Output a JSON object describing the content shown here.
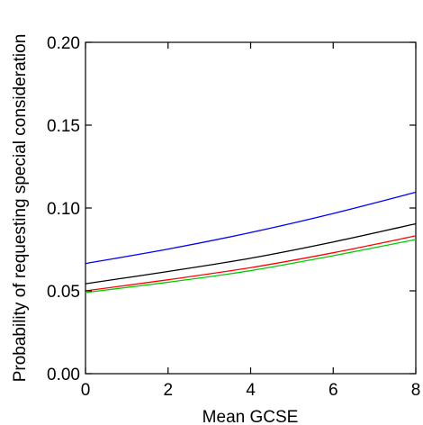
{
  "chart_data": {
    "type": "line",
    "title": "",
    "xlabel": "Mean GCSE",
    "ylabel": "Probability of requesting special consideration",
    "xlim": [
      0,
      8
    ],
    "ylim": [
      0,
      0.2
    ],
    "xticks": [
      0,
      2,
      4,
      6,
      8
    ],
    "xtick_labels": [
      "0",
      "2",
      "4",
      "6",
      "8"
    ],
    "yticks": [
      0,
      0.05,
      0.1,
      0.15,
      0.2
    ],
    "ytick_labels": [
      "0.00",
      "0.05",
      "0.10",
      "0.15",
      "0.20"
    ],
    "grid": false,
    "legend": "none",
    "series": [
      {
        "color": "#0000ff",
        "x": [
          0,
          2,
          4,
          6,
          8
        ],
        "y": [
          0.0665,
          0.0752,
          0.0852,
          0.0967,
          0.1095
        ]
      },
      {
        "color": "#000000",
        "x": [
          0,
          2,
          4,
          6,
          8
        ],
        "y": [
          0.0543,
          0.0617,
          0.0697,
          0.0795,
          0.0905
        ]
      },
      {
        "color": "#ff0000",
        "x": [
          0,
          2,
          4,
          6,
          8
        ],
        "y": [
          0.05,
          0.0567,
          0.064,
          0.073,
          0.0832
        ]
      },
      {
        "color": "#00cc00",
        "x": [
          0,
          2,
          4,
          6,
          8
        ],
        "y": [
          0.049,
          0.0552,
          0.0622,
          0.0712,
          0.081
        ]
      }
    ]
  }
}
